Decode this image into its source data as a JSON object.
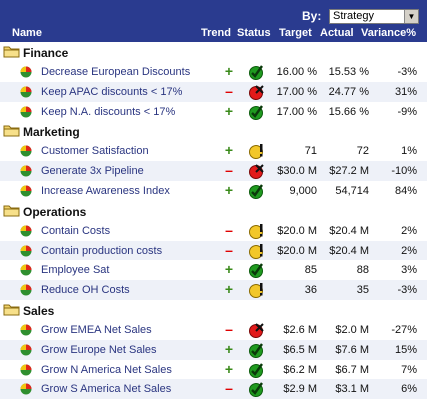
{
  "toolbar": {
    "by_label": "By:",
    "strategy_value": "Strategy"
  },
  "columns": {
    "name": "Name",
    "trend": "Trend",
    "status": "Status",
    "target": "Target",
    "actual": "Actual",
    "variance": "Variance%"
  },
  "colors": {
    "header_bg": "#2a3b8f",
    "link": "#2a3580",
    "row_alt": "#eef1f8",
    "trend_up": "#3a8a1a",
    "trend_down": "#e00000"
  },
  "sections": [
    {
      "title": "Finance",
      "rows": [
        {
          "name": "Decrease European Discounts",
          "trend": "up",
          "status": "check-icon",
          "target": "16.00 %",
          "actual": "15.53 %",
          "variance": "-3%"
        },
        {
          "name": "Keep APAC discounts < 17%",
          "trend": "down",
          "status": "x-icon",
          "target": "17.00 %",
          "actual": "24.77 %",
          "variance": "31%"
        },
        {
          "name": "Keep N.A. discounts < 17%",
          "trend": "up",
          "status": "check-icon",
          "target": "17.00 %",
          "actual": "15.66 %",
          "variance": "-9%"
        }
      ]
    },
    {
      "title": "Marketing",
      "rows": [
        {
          "name": "Customer Satisfaction",
          "trend": "up",
          "status": "warning-icon",
          "target": "71",
          "actual": "72",
          "variance": "1%"
        },
        {
          "name": "Generate 3x Pipeline",
          "trend": "down",
          "status": "x-icon",
          "target": "$30.0 M",
          "actual": "$27.2 M",
          "variance": "-10%"
        },
        {
          "name": "Increase Awareness Index",
          "trend": "up",
          "status": "check-icon",
          "target": "9,000",
          "actual": "54,714",
          "variance": "84%"
        }
      ]
    },
    {
      "title": "Operations",
      "rows": [
        {
          "name": "Contain Costs",
          "trend": "down",
          "status": "warning-icon",
          "target": "$20.0 M",
          "actual": "$20.4 M",
          "variance": "2%"
        },
        {
          "name": "Contain production costs",
          "trend": "down",
          "status": "warning-icon",
          "target": "$20.0 M",
          "actual": "$20.4 M",
          "variance": "2%"
        },
        {
          "name": "Employee Sat",
          "trend": "up",
          "status": "check-icon",
          "target": "85",
          "actual": "88",
          "variance": "3%"
        },
        {
          "name": "Reduce OH Costs",
          "trend": "up",
          "status": "warning-icon",
          "target": "36",
          "actual": "35",
          "variance": "-3%"
        }
      ]
    },
    {
      "title": "Sales",
      "rows": [
        {
          "name": "Grow EMEA Net Sales",
          "trend": "down",
          "status": "x-icon",
          "target": "$2.6 M",
          "actual": "$2.0 M",
          "variance": "-27%"
        },
        {
          "name": "Grow Europe Net Sales",
          "trend": "up",
          "status": "check-icon",
          "target": "$6.5 M",
          "actual": "$7.6 M",
          "variance": "15%"
        },
        {
          "name": "Grow N America Net Sales",
          "trend": "up",
          "status": "check-icon",
          "target": "$6.2 M",
          "actual": "$6.7 M",
          "variance": "7%"
        },
        {
          "name": "Grow S America Net Sales",
          "trend": "down",
          "status": "check-icon",
          "target": "$2.9 M",
          "actual": "$3.1 M",
          "variance": "6%"
        }
      ]
    }
  ]
}
